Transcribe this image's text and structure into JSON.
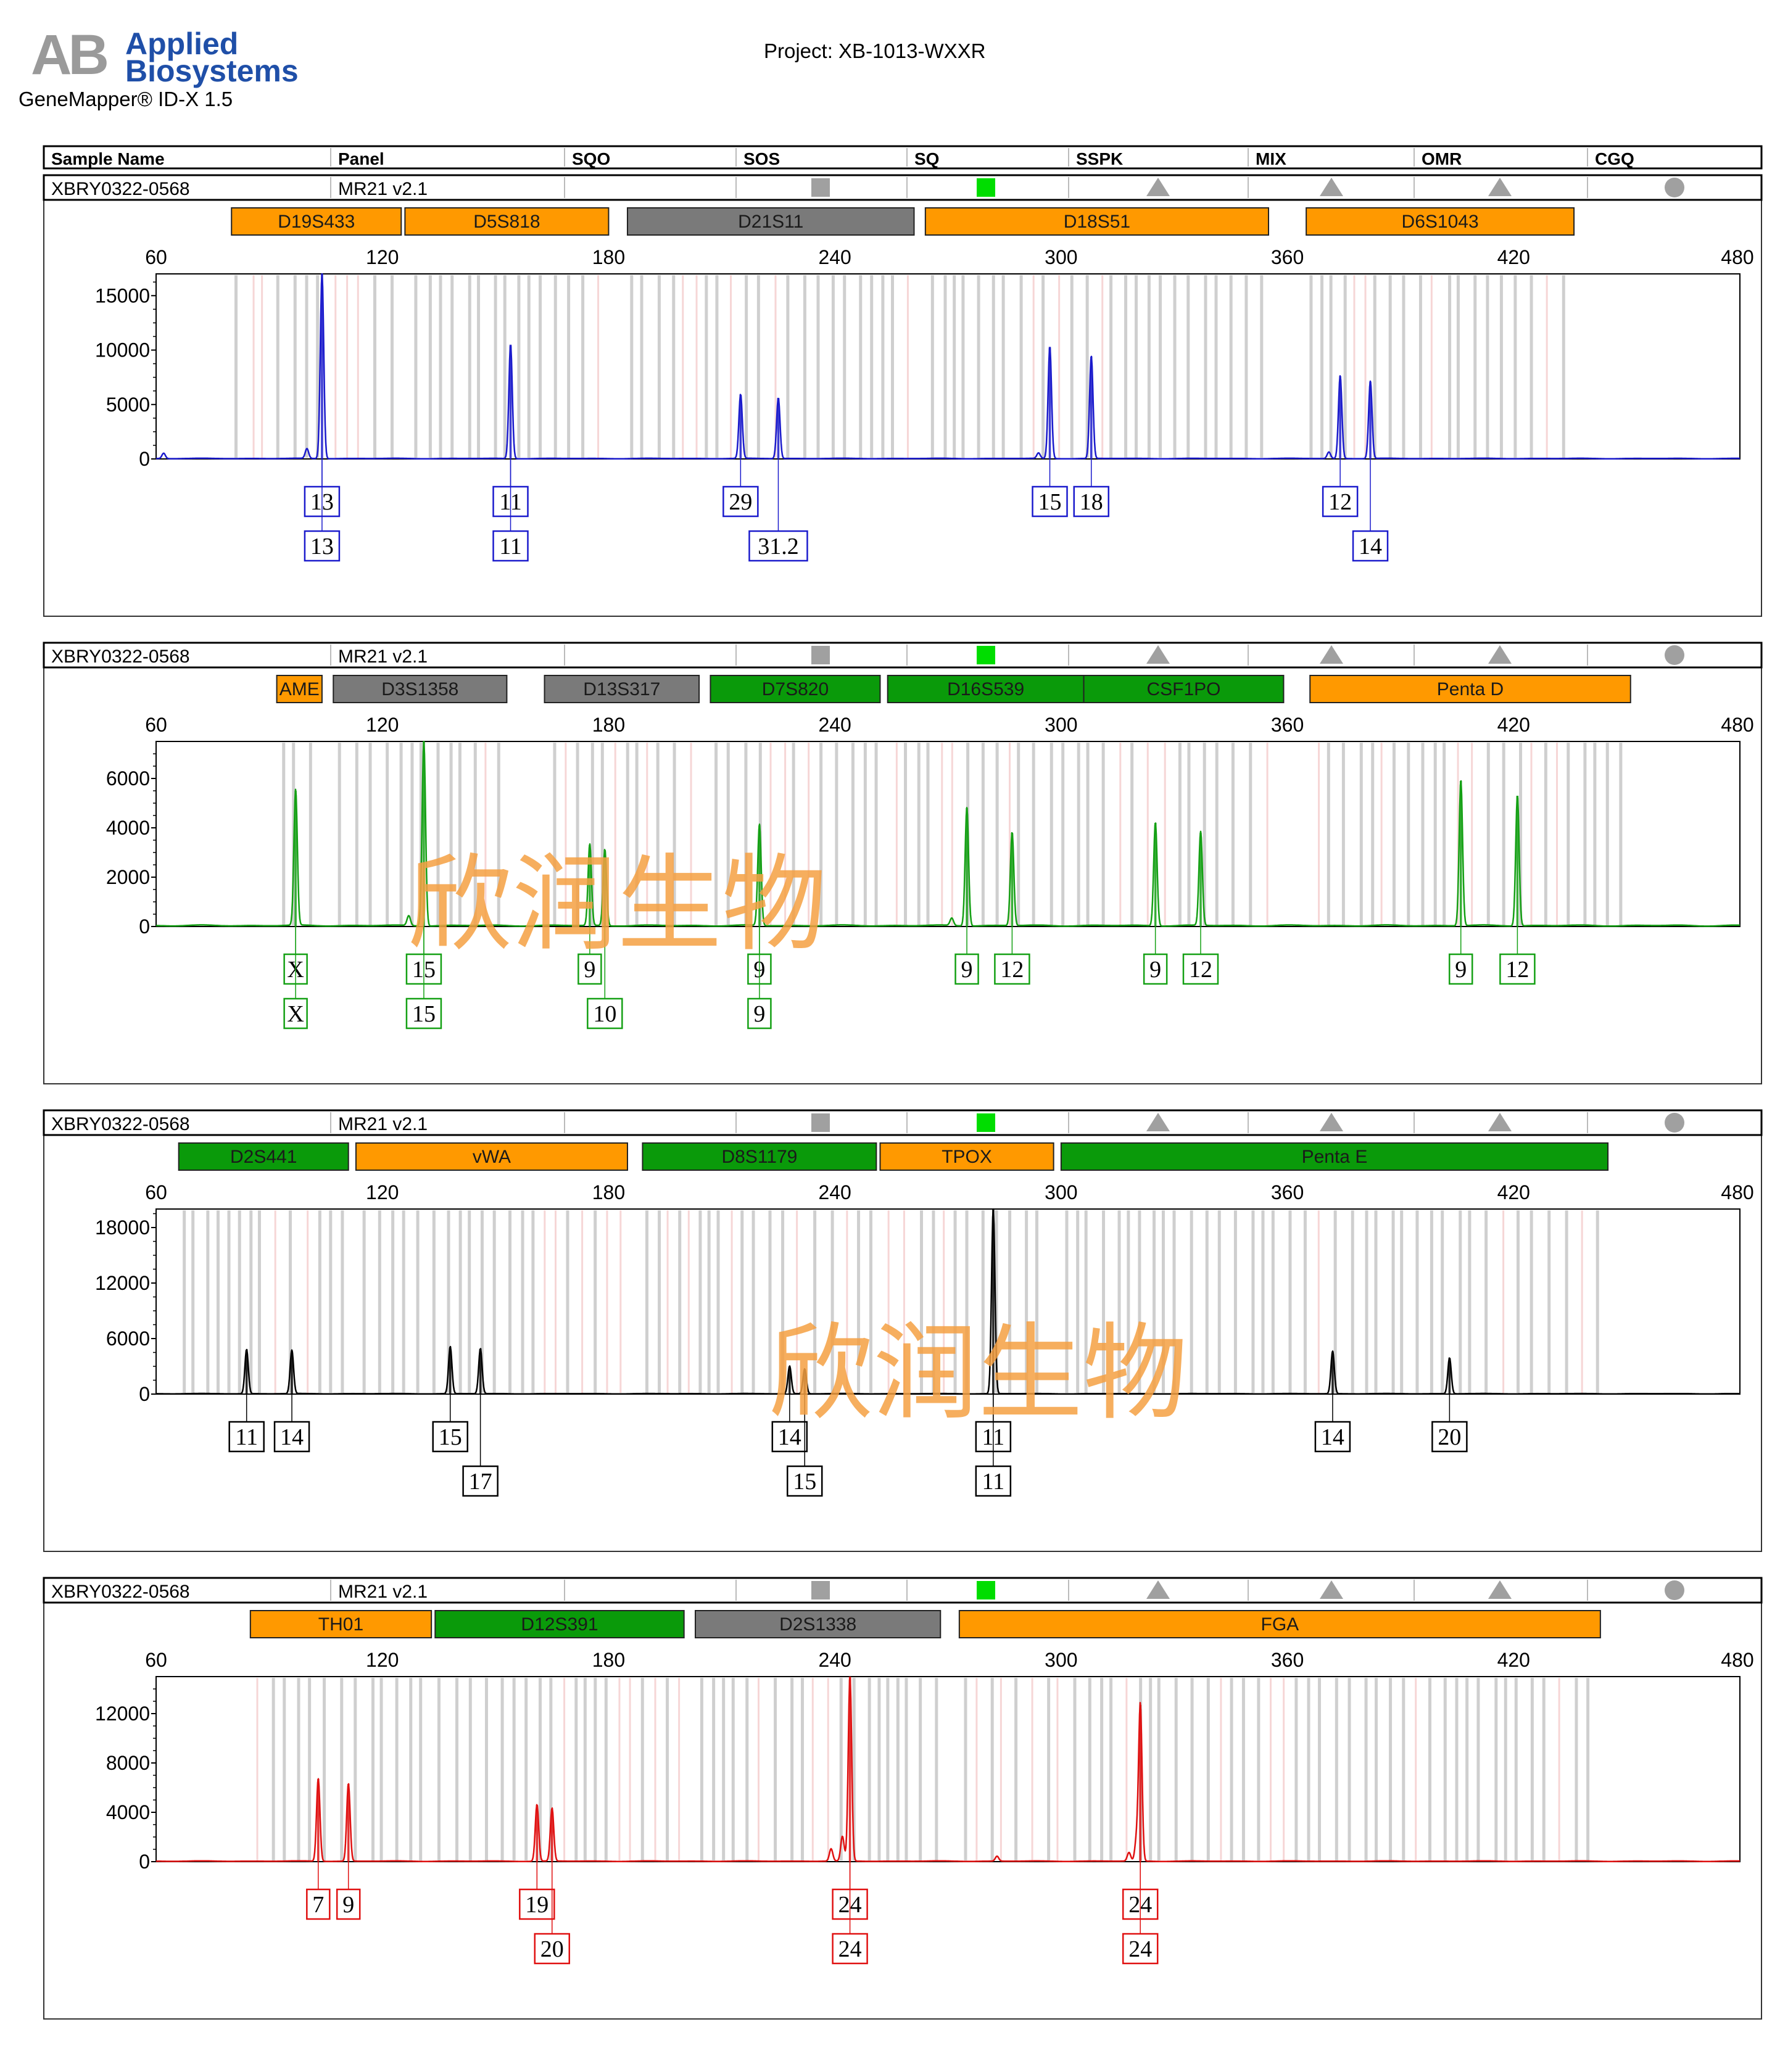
{
  "header": {
    "logo_mark": "AB",
    "logo_line1": "Applied",
    "logo_line2": "Biosystems",
    "software": "GeneMapper® ID-X  1.5",
    "project": "Project: XB-1013-WXXR"
  },
  "watermark": "欣润生物",
  "table_header": [
    "Sample Name",
    "Panel",
    "SQO",
    "SOS",
    "SQ",
    "SSPK",
    "MIX",
    "OMR",
    "CGQ"
  ],
  "colors": {
    "blue": "#1a1acc",
    "green": "#14a014",
    "black": "#000000",
    "red": "#e01010",
    "orange": "#ff9900",
    "darkgreen": "#0a9a0a",
    "gray": "#7a7a7a",
    "quality_green": "#00dd00",
    "quality_gray": "#a0a0a0",
    "watermark": "#f5a042"
  },
  "chart_data": [
    {
      "type": "line",
      "title": "XBRY0322-0568 blue dye",
      "sample_name": "XBRY0322-0568",
      "panel": "MR21  v2.1",
      "dye": "blue",
      "xlim": [
        60,
        480
      ],
      "x_ticks": [
        60,
        120,
        180,
        240,
        300,
        360,
        420,
        480
      ],
      "ylim": [
        0,
        17000
      ],
      "y_ticks": [
        0,
        5000,
        10000,
        15000
      ],
      "loci": [
        {
          "name": "D19S433",
          "color": "orange",
          "start": 80,
          "end": 125
        },
        {
          "name": "D5S818",
          "color": "orange",
          "start": 126,
          "end": 180
        },
        {
          "name": "D21S11",
          "color": "gray",
          "start": 185,
          "end": 261
        },
        {
          "name": "D18S51",
          "color": "orange",
          "start": 264,
          "end": 355
        },
        {
          "name": "D6S1043",
          "color": "orange",
          "start": 365,
          "end": 436
        }
      ],
      "peaks": [
        {
          "x": 104,
          "y": 17000
        },
        {
          "x": 154,
          "y": 10500
        },
        {
          "x": 215,
          "y": 5900
        },
        {
          "x": 225,
          "y": 5600
        },
        {
          "x": 297,
          "y": 10300
        },
        {
          "x": 308,
          "y": 9400
        },
        {
          "x": 374,
          "y": 7600
        },
        {
          "x": 382,
          "y": 7100
        }
      ],
      "small_peaks": [
        {
          "x": 62,
          "y": 500
        },
        {
          "x": 100,
          "y": 900
        },
        {
          "x": 294,
          "y": 500
        },
        {
          "x": 371,
          "y": 600
        }
      ],
      "labels": [
        {
          "x": 104,
          "row": 1,
          "text": "13"
        },
        {
          "x": 104,
          "row": 2,
          "text": "13"
        },
        {
          "x": 154,
          "row": 1,
          "text": "11"
        },
        {
          "x": 154,
          "row": 2,
          "text": "11"
        },
        {
          "x": 215,
          "row": 1,
          "text": "29"
        },
        {
          "x": 225,
          "row": 2,
          "text": "31.2"
        },
        {
          "x": 297,
          "row": 1,
          "text": "15"
        },
        {
          "x": 308,
          "row": 1,
          "text": "18"
        },
        {
          "x": 374,
          "row": 1,
          "text": "12"
        },
        {
          "x": 382,
          "row": 2,
          "text": "14"
        }
      ]
    },
    {
      "type": "line",
      "title": "XBRY0322-0568 green dye",
      "sample_name": "XBRY0322-0568",
      "panel": "MR21  v2.1",
      "dye": "green",
      "xlim": [
        60,
        480
      ],
      "x_ticks": [
        60,
        120,
        180,
        240,
        300,
        360,
        420,
        480
      ],
      "ylim": [
        0,
        7500
      ],
      "y_ticks": [
        0,
        2000,
        4000,
        6000
      ],
      "loci": [
        {
          "name": "AME",
          "color": "orange",
          "start": 92,
          "end": 104
        },
        {
          "name": "D3S1358",
          "color": "gray",
          "start": 107,
          "end": 153
        },
        {
          "name": "D13S317",
          "color": "gray",
          "start": 163,
          "end": 204
        },
        {
          "name": "D7S820",
          "color": "darkgreen",
          "start": 207,
          "end": 252
        },
        {
          "name": "D16S539",
          "color": "darkgreen",
          "start": 254,
          "end": 306
        },
        {
          "name": "CSF1PO",
          "color": "darkgreen",
          "start": 306,
          "end": 359
        },
        {
          "name": "Penta D",
          "color": "orange",
          "start": 366,
          "end": 451
        }
      ],
      "peaks": [
        {
          "x": 97,
          "y": 5500
        },
        {
          "x": 131,
          "y": 7500
        },
        {
          "x": 175,
          "y": 3300
        },
        {
          "x": 179,
          "y": 3100
        },
        {
          "x": 220,
          "y": 4100
        },
        {
          "x": 275,
          "y": 4800
        },
        {
          "x": 287,
          "y": 3800
        },
        {
          "x": 325,
          "y": 4200
        },
        {
          "x": 337,
          "y": 3800
        },
        {
          "x": 406,
          "y": 5900
        },
        {
          "x": 421,
          "y": 5300
        }
      ],
      "small_peaks": [
        {
          "x": 127,
          "y": 400
        },
        {
          "x": 271,
          "y": 300
        }
      ],
      "labels": [
        {
          "x": 97,
          "row": 1,
          "text": "X"
        },
        {
          "x": 97,
          "row": 2,
          "text": "X"
        },
        {
          "x": 131,
          "row": 1,
          "text": "15"
        },
        {
          "x": 131,
          "row": 2,
          "text": "15"
        },
        {
          "x": 175,
          "row": 1,
          "text": "9"
        },
        {
          "x": 179,
          "row": 2,
          "text": "10"
        },
        {
          "x": 220,
          "row": 1,
          "text": "9"
        },
        {
          "x": 220,
          "row": 2,
          "text": "9"
        },
        {
          "x": 275,
          "row": 1,
          "text": "9"
        },
        {
          "x": 287,
          "row": 1,
          "text": "12"
        },
        {
          "x": 325,
          "row": 1,
          "text": "9"
        },
        {
          "x": 337,
          "row": 1,
          "text": "12"
        },
        {
          "x": 406,
          "row": 1,
          "text": "9"
        },
        {
          "x": 421,
          "row": 1,
          "text": "12"
        }
      ]
    },
    {
      "type": "line",
      "title": "XBRY0322-0568 yellow dye",
      "sample_name": "XBRY0322-0568",
      "panel": "MR21  v2.1",
      "dye": "black",
      "xlim": [
        60,
        480
      ],
      "x_ticks": [
        60,
        120,
        180,
        240,
        300,
        360,
        420,
        480
      ],
      "ylim": [
        0,
        20000
      ],
      "y_ticks": [
        0,
        6000,
        12000,
        18000
      ],
      "loci": [
        {
          "name": "D2S441",
          "color": "darkgreen",
          "start": 66,
          "end": 111
        },
        {
          "name": "vWA",
          "color": "orange",
          "start": 113,
          "end": 185
        },
        {
          "name": "D8S1179",
          "color": "darkgreen",
          "start": 189,
          "end": 251
        },
        {
          "name": "TPOX",
          "color": "orange",
          "start": 252,
          "end": 298
        },
        {
          "name": "Penta E",
          "color": "darkgreen",
          "start": 300,
          "end": 445
        }
      ],
      "peaks": [
        {
          "x": 84,
          "y": 4800
        },
        {
          "x": 96,
          "y": 4700
        },
        {
          "x": 138,
          "y": 5100
        },
        {
          "x": 146,
          "y": 4900
        },
        {
          "x": 228,
          "y": 3000
        },
        {
          "x": 232,
          "y": 2700
        },
        {
          "x": 282,
          "y": 20000
        },
        {
          "x": 372,
          "y": 4600
        },
        {
          "x": 403,
          "y": 3900
        }
      ],
      "small_peaks": [],
      "labels": [
        {
          "x": 84,
          "row": 1,
          "text": "11"
        },
        {
          "x": 96,
          "row": 1,
          "text": "14"
        },
        {
          "x": 138,
          "row": 1,
          "text": "15"
        },
        {
          "x": 146,
          "row": 2,
          "text": "17"
        },
        {
          "x": 228,
          "row": 1,
          "text": "14"
        },
        {
          "x": 232,
          "row": 2,
          "text": "15"
        },
        {
          "x": 282,
          "row": 1,
          "text": "11"
        },
        {
          "x": 282,
          "row": 2,
          "text": "11"
        },
        {
          "x": 372,
          "row": 1,
          "text": "14"
        },
        {
          "x": 403,
          "row": 1,
          "text": "20"
        }
      ]
    },
    {
      "type": "line",
      "title": "XBRY0322-0568 red dye",
      "sample_name": "XBRY0322-0568",
      "panel": "MR21  v2.1",
      "dye": "red",
      "xlim": [
        60,
        480
      ],
      "x_ticks": [
        60,
        120,
        180,
        240,
        300,
        360,
        420,
        480
      ],
      "ylim": [
        0,
        15000
      ],
      "y_ticks": [
        0,
        4000,
        8000,
        12000
      ],
      "loci": [
        {
          "name": "TH01",
          "color": "orange",
          "start": 85,
          "end": 133
        },
        {
          "name": "D12S391",
          "color": "darkgreen",
          "start": 134,
          "end": 200
        },
        {
          "name": "D2S1338",
          "color": "gray",
          "start": 203,
          "end": 268
        },
        {
          "name": "FGA",
          "color": "orange",
          "start": 273,
          "end": 443
        }
      ],
      "peaks": [
        {
          "x": 103,
          "y": 6700
        },
        {
          "x": 111,
          "y": 6300
        },
        {
          "x": 161,
          "y": 4600
        },
        {
          "x": 165,
          "y": 4300
        },
        {
          "x": 244,
          "y": 15000
        },
        {
          "x": 321,
          "y": 12700
        }
      ],
      "small_peaks": [
        {
          "x": 239,
          "y": 1000
        },
        {
          "x": 242,
          "y": 2000
        },
        {
          "x": 283,
          "y": 400
        },
        {
          "x": 318,
          "y": 700
        },
        {
          "x": 320,
          "y": 1700
        }
      ],
      "labels": [
        {
          "x": 103,
          "row": 1,
          "text": "7"
        },
        {
          "x": 111,
          "row": 1,
          "text": "9"
        },
        {
          "x": 161,
          "row": 1,
          "text": "19"
        },
        {
          "x": 165,
          "row": 2,
          "text": "20"
        },
        {
          "x": 244,
          "row": 1,
          "text": "24"
        },
        {
          "x": 244,
          "row": 2,
          "text": "24"
        },
        {
          "x": 321,
          "row": 1,
          "text": "24"
        },
        {
          "x": 321,
          "row": 2,
          "text": "24"
        }
      ]
    }
  ]
}
